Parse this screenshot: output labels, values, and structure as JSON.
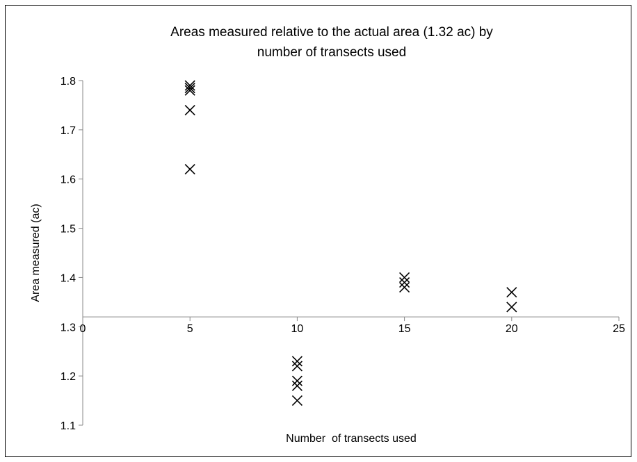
{
  "chart_data": {
    "type": "scatter",
    "title": "Areas measured relative to the actual area (1.32 ac) by number of transects used",
    "title_lines": [
      "Areas measured relative to the actual area (1.32 ac) by",
      "number of transects used"
    ],
    "xlabel": "Number  of transects used",
    "ylabel": "Area measured (ac)",
    "xlim": [
      0,
      25
    ],
    "ylim": [
      1.1,
      1.8
    ],
    "x_crosses_at": 1.32,
    "xticks": [
      0,
      5,
      10,
      15,
      20,
      25
    ],
    "yticks": [
      1.1,
      1.2,
      1.3,
      1.4,
      1.5,
      1.6,
      1.7,
      1.8
    ],
    "xtick_labels": [
      "0",
      "5",
      "10",
      "15",
      "20",
      "25"
    ],
    "ytick_labels": [
      "1.1",
      "1.2",
      "1.3",
      "1.4",
      "1.5",
      "1.6",
      "1.7",
      "1.8"
    ],
    "grid": false,
    "legend": false,
    "marker": "x",
    "marker_color": "#000000",
    "series": [
      {
        "points": [
          [
            5,
            1.79
          ],
          [
            5,
            1.785
          ],
          [
            5,
            1.78
          ],
          [
            5,
            1.74
          ],
          [
            5,
            1.62
          ],
          [
            10,
            1.23
          ],
          [
            10,
            1.22
          ],
          [
            10,
            1.19
          ],
          [
            10,
            1.18
          ],
          [
            10,
            1.15
          ],
          [
            15,
            1.4
          ],
          [
            15,
            1.39
          ],
          [
            15,
            1.38
          ],
          [
            20,
            1.37
          ],
          [
            20,
            1.34
          ]
        ]
      }
    ]
  }
}
